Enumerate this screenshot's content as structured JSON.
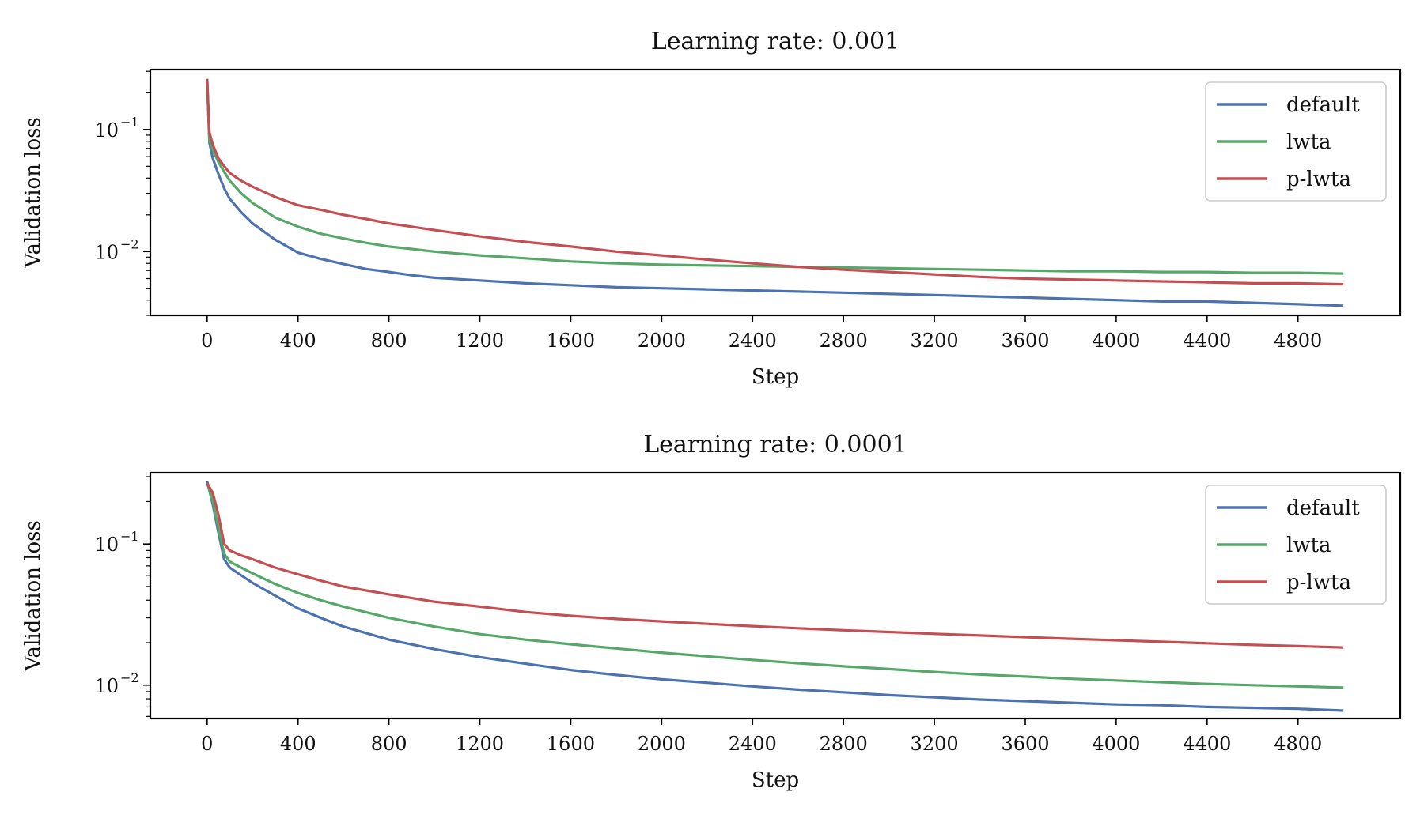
{
  "chart_data": [
    {
      "type": "line",
      "title": "Learning rate: 0.001",
      "xlabel": "Step",
      "ylabel": "Validation loss",
      "yscale": "log",
      "xlim": [
        -250,
        5250
      ],
      "ylim": [
        0.003,
        0.31
      ],
      "xticks": [
        "0",
        "400",
        "800",
        "1200",
        "1600",
        "2000",
        "2400",
        "2800",
        "3200",
        "3600",
        "4000",
        "4400",
        "4800"
      ],
      "yticks": [
        {
          "base": "10",
          "exp": "−1",
          "value": 0.1
        },
        {
          "base": "10",
          "exp": "−2",
          "value": 0.01
        }
      ],
      "grid": false,
      "legend_position": "top-right",
      "series": [
        {
          "name": "default",
          "color": "#4c72b0",
          "x": [
            0,
            10,
            25,
            50,
            75,
            100,
            150,
            200,
            300,
            400,
            500,
            600,
            700,
            800,
            900,
            1000,
            1200,
            1400,
            1600,
            1800,
            2000,
            2200,
            2400,
            2600,
            2800,
            3000,
            3200,
            3400,
            3600,
            3800,
            4000,
            4200,
            4400,
            4600,
            4800,
            5000
          ],
          "y": [
            0.26,
            0.078,
            0.058,
            0.043,
            0.033,
            0.027,
            0.021,
            0.017,
            0.0125,
            0.0098,
            0.0087,
            0.0079,
            0.0072,
            0.0068,
            0.0064,
            0.0061,
            0.0058,
            0.0055,
            0.0053,
            0.0051,
            0.005,
            0.0049,
            0.0048,
            0.0047,
            0.0046,
            0.0045,
            0.0044,
            0.0043,
            0.0042,
            0.0041,
            0.004,
            0.0039,
            0.0039,
            0.0038,
            0.0037,
            0.0036
          ]
        },
        {
          "name": "lwta",
          "color": "#55a868",
          "x": [
            0,
            10,
            25,
            50,
            75,
            100,
            150,
            200,
            300,
            400,
            500,
            600,
            700,
            800,
            900,
            1000,
            1200,
            1400,
            1600,
            1800,
            2000,
            2200,
            2400,
            2600,
            2800,
            3000,
            3200,
            3400,
            3600,
            3800,
            4000,
            4200,
            4400,
            4600,
            4800,
            5000
          ],
          "y": [
            0.26,
            0.082,
            0.068,
            0.054,
            0.045,
            0.038,
            0.03,
            0.025,
            0.019,
            0.016,
            0.014,
            0.0128,
            0.0118,
            0.011,
            0.0105,
            0.01,
            0.0093,
            0.0088,
            0.0083,
            0.008,
            0.0078,
            0.0077,
            0.0076,
            0.0075,
            0.0074,
            0.0073,
            0.0072,
            0.0071,
            0.007,
            0.0069,
            0.0069,
            0.0068,
            0.0068,
            0.0067,
            0.0067,
            0.0066
          ]
        },
        {
          "name": "p-lwta",
          "color": "#c44e52",
          "x": [
            0,
            10,
            25,
            50,
            75,
            100,
            150,
            200,
            300,
            400,
            500,
            600,
            700,
            800,
            900,
            1000,
            1200,
            1400,
            1600,
            1800,
            2000,
            2200,
            2400,
            2600,
            2800,
            3000,
            3200,
            3400,
            3600,
            3800,
            4000,
            4200,
            4400,
            4600,
            4800,
            5000
          ],
          "y": [
            0.26,
            0.095,
            0.075,
            0.058,
            0.05,
            0.044,
            0.038,
            0.034,
            0.028,
            0.024,
            0.022,
            0.02,
            0.0185,
            0.017,
            0.016,
            0.015,
            0.0133,
            0.012,
            0.011,
            0.01,
            0.0093,
            0.0086,
            0.008,
            0.0075,
            0.0071,
            0.0068,
            0.0065,
            0.0062,
            0.006,
            0.0059,
            0.0058,
            0.0057,
            0.0056,
            0.0055,
            0.0055,
            0.0054
          ]
        }
      ]
    },
    {
      "type": "line",
      "title": "Learning rate: 0.0001",
      "xlabel": "Step",
      "ylabel": "Validation loss",
      "yscale": "log",
      "xlim": [
        -250,
        5250
      ],
      "ylim": [
        0.0058,
        0.32
      ],
      "xticks": [
        "0",
        "400",
        "800",
        "1200",
        "1600",
        "2000",
        "2400",
        "2800",
        "3200",
        "3600",
        "4000",
        "4400",
        "4800"
      ],
      "yticks": [
        {
          "base": "10",
          "exp": "−1",
          "value": 0.1
        },
        {
          "base": "10",
          "exp": "−2",
          "value": 0.01
        }
      ],
      "grid": false,
      "legend_position": "top-right",
      "series": [
        {
          "name": "default",
          "color": "#4c72b0",
          "x": [
            0,
            25,
            50,
            75,
            100,
            150,
            200,
            300,
            400,
            500,
            600,
            800,
            1000,
            1200,
            1400,
            1600,
            1800,
            2000,
            2200,
            2400,
            2600,
            2800,
            3000,
            3200,
            3400,
            3600,
            3800,
            4000,
            4200,
            4400,
            4600,
            4800,
            5000
          ],
          "y": [
            0.28,
            0.19,
            0.12,
            0.078,
            0.068,
            0.06,
            0.053,
            0.043,
            0.035,
            0.03,
            0.026,
            0.021,
            0.018,
            0.0158,
            0.0142,
            0.0128,
            0.0118,
            0.011,
            0.0104,
            0.0098,
            0.0093,
            0.0089,
            0.0085,
            0.0082,
            0.0079,
            0.0077,
            0.0075,
            0.0073,
            0.0072,
            0.007,
            0.0069,
            0.0068,
            0.0066
          ]
        },
        {
          "name": "lwta",
          "color": "#55a868",
          "x": [
            0,
            25,
            50,
            75,
            100,
            150,
            200,
            300,
            400,
            500,
            600,
            800,
            1000,
            1200,
            1400,
            1600,
            1800,
            2000,
            2200,
            2400,
            2600,
            2800,
            3000,
            3200,
            3400,
            3600,
            3800,
            4000,
            4200,
            4400,
            4600,
            4800,
            5000
          ],
          "y": [
            0.27,
            0.2,
            0.13,
            0.085,
            0.075,
            0.068,
            0.062,
            0.052,
            0.045,
            0.04,
            0.036,
            0.03,
            0.026,
            0.023,
            0.021,
            0.0195,
            0.0182,
            0.017,
            0.016,
            0.0151,
            0.0143,
            0.0136,
            0.013,
            0.0124,
            0.0119,
            0.0115,
            0.0111,
            0.0108,
            0.0105,
            0.0102,
            0.01,
            0.0098,
            0.0096
          ]
        },
        {
          "name": "p-lwta",
          "color": "#c44e52",
          "x": [
            0,
            25,
            50,
            75,
            100,
            150,
            200,
            300,
            400,
            500,
            600,
            800,
            1000,
            1200,
            1400,
            1600,
            1800,
            2000,
            2200,
            2400,
            2600,
            2800,
            3000,
            3200,
            3400,
            3600,
            3800,
            4000,
            4200,
            4400,
            4600,
            4800,
            5000
          ],
          "y": [
            0.27,
            0.23,
            0.16,
            0.1,
            0.09,
            0.083,
            0.078,
            0.068,
            0.061,
            0.055,
            0.05,
            0.044,
            0.039,
            0.036,
            0.033,
            0.031,
            0.0295,
            0.0283,
            0.0272,
            0.0262,
            0.0253,
            0.0245,
            0.0238,
            0.0231,
            0.0225,
            0.0219,
            0.0213,
            0.0208,
            0.0203,
            0.0198,
            0.0193,
            0.0189,
            0.0185
          ]
        }
      ]
    }
  ]
}
